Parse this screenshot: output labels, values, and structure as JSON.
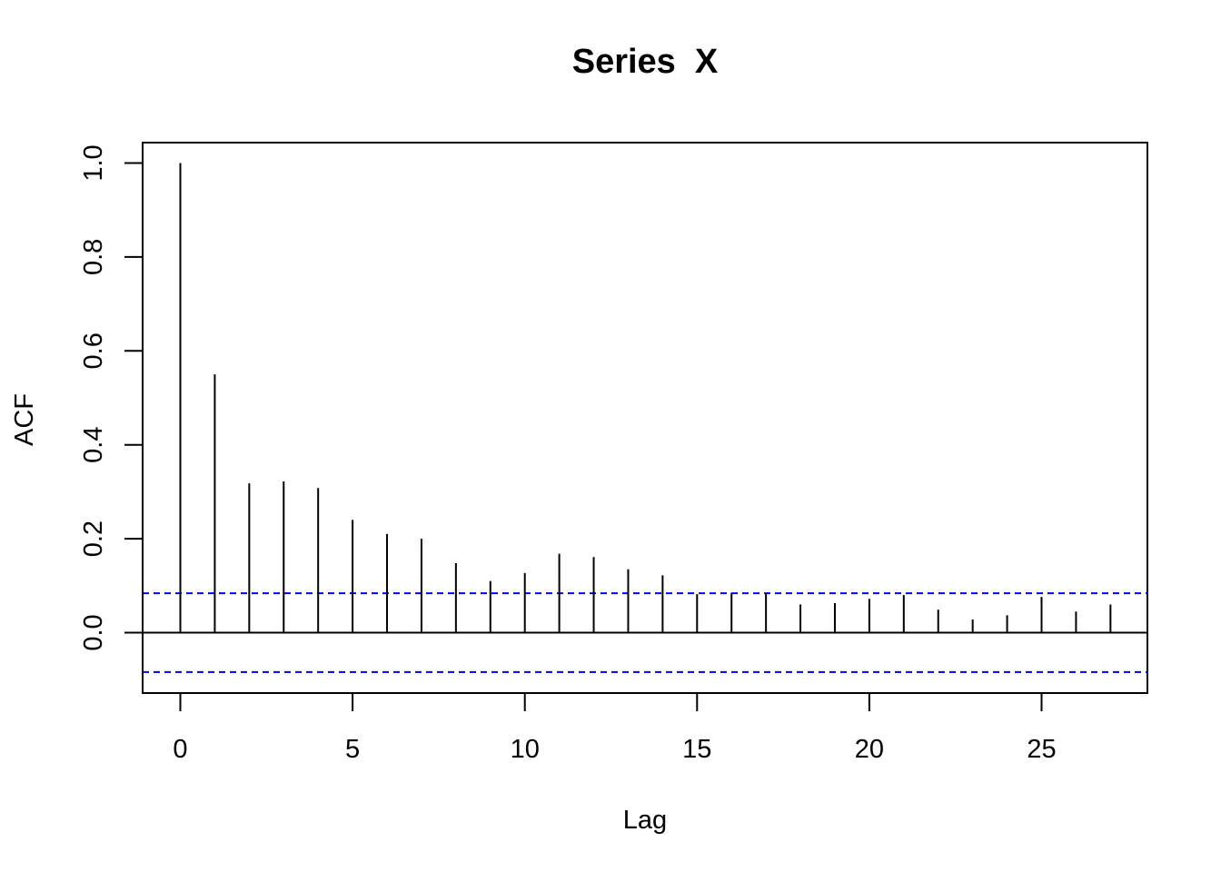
{
  "chart_data": {
    "type": "bar",
    "title": "Series  X",
    "xlabel": "Lag",
    "ylabel": "ACF",
    "xlim": [
      -1.08,
      28.08
    ],
    "ylim": [
      -0.13,
      1.045
    ],
    "x_ticks": [
      0,
      5,
      10,
      15,
      20,
      25
    ],
    "y_ticks": [
      "0.0",
      "0.2",
      "0.4",
      "0.6",
      "0.8",
      "1.0"
    ],
    "lags": [
      0,
      1,
      2,
      3,
      4,
      5,
      6,
      7,
      8,
      9,
      10,
      11,
      12,
      13,
      14,
      15,
      16,
      17,
      18,
      19,
      20,
      21,
      22,
      23,
      24,
      25,
      26,
      27
    ],
    "values": [
      1.0,
      0.55,
      0.318,
      0.322,
      0.308,
      0.24,
      0.21,
      0.2,
      0.148,
      0.11,
      0.127,
      0.168,
      0.161,
      0.135,
      0.122,
      0.082,
      0.085,
      0.085,
      0.06,
      0.063,
      0.072,
      0.08,
      0.049,
      0.028,
      0.037,
      0.076,
      0.045,
      0.06
    ],
    "confidence_bound": 0.084,
    "confidence_color": "#0000ff",
    "grid": false,
    "legend": "none"
  }
}
